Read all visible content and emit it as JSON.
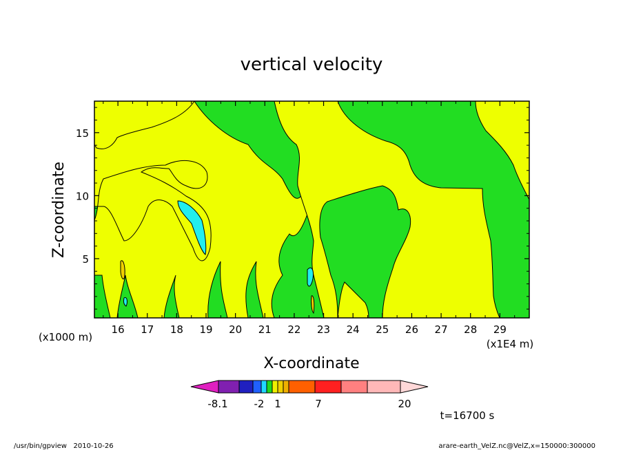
{
  "chart_data": {
    "type": "heatmap",
    "title": "vertical velocity",
    "xlabel": "X-coordinate",
    "ylabel": "Z-coordinate",
    "x_unit_label": "(x1E4 m)",
    "y_unit_label": "(x1000 m)",
    "xlim": [
      15.2,
      30.0
    ],
    "ylim": [
      0.3,
      17.5
    ],
    "x_ticks": [
      "16",
      "17",
      "18",
      "19",
      "20",
      "21",
      "22",
      "23",
      "24",
      "25",
      "26",
      "27",
      "28",
      "29"
    ],
    "y_ticks": [
      "5",
      "10",
      "15"
    ],
    "colorbar": {
      "labels": [
        "-8.1",
        "-2",
        "1",
        "7",
        "20"
      ],
      "colors": [
        "#e020c0",
        "#8020b0",
        "#2020c0",
        "#2060ff",
        "#20d8ff",
        "#20d820",
        "#f0f000",
        "#f0d000",
        "#f0b000",
        "#ff6000",
        "#ff2020",
        "#ff8080",
        "#ffb8b8",
        "#ffd8d8"
      ]
    },
    "regions": [
      {
        "name": "green",
        "color": "#22dd22"
      },
      {
        "name": "yellow",
        "color": "#eeff00"
      },
      {
        "name": "cyan",
        "color": "#22eeee"
      }
    ],
    "time_label": "t=16700 s"
  },
  "footer": {
    "left": "/usr/bin/gpview   2010-10-26",
    "right": "arare-earth_VelZ.nc@VelZ,x=150000:300000"
  }
}
